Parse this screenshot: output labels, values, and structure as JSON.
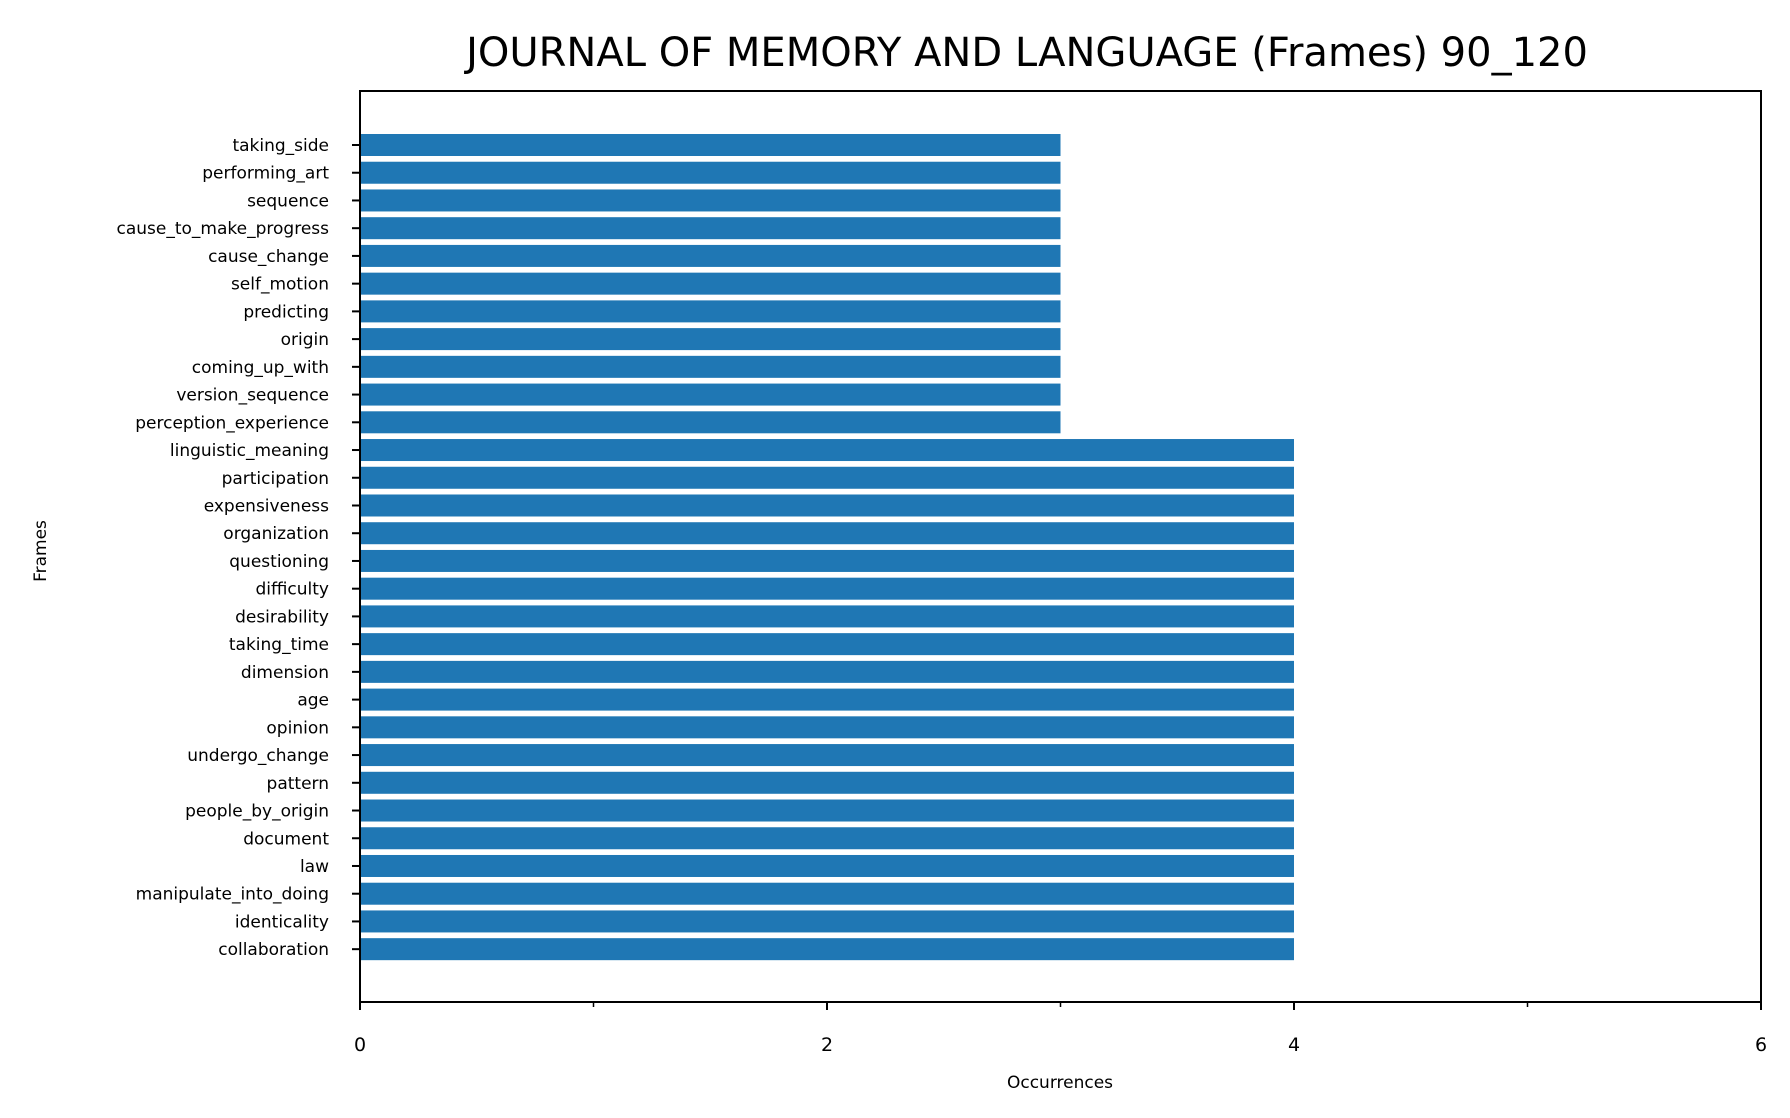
{
  "chart_data": {
    "type": "bar",
    "orientation": "horizontal",
    "title": "JOURNAL OF MEMORY AND LANGUAGE (Frames) 90_120",
    "xlabel": "Occurrences",
    "ylabel": "Frames",
    "xlim": [
      0,
      6
    ],
    "xticks": [
      0,
      2,
      4,
      6
    ],
    "grid": false,
    "bar_color": "#1f77b4",
    "categories": [
      "taking_side",
      "performing_art",
      "sequence",
      "cause_to_make_progress",
      "cause_change",
      "self_motion",
      "predicting",
      "origin",
      "coming_up_with",
      "version_sequence",
      "perception_experience",
      "linguistic_meaning",
      "participation",
      "expensiveness",
      "organization",
      "questioning",
      "difficulty",
      "desirability",
      "taking_time",
      "dimension",
      "age",
      "opinion",
      "undergo_change",
      "pattern",
      "people_by_origin",
      "document",
      "law",
      "manipulate_into_doing",
      "identicality",
      "collaboration"
    ],
    "values": [
      3,
      3,
      3,
      3,
      3,
      3,
      3,
      3,
      3,
      3,
      3,
      4,
      4,
      4,
      4,
      4,
      4,
      4,
      4,
      4,
      4,
      4,
      4,
      4,
      4,
      4,
      4,
      4,
      4,
      4
    ]
  }
}
